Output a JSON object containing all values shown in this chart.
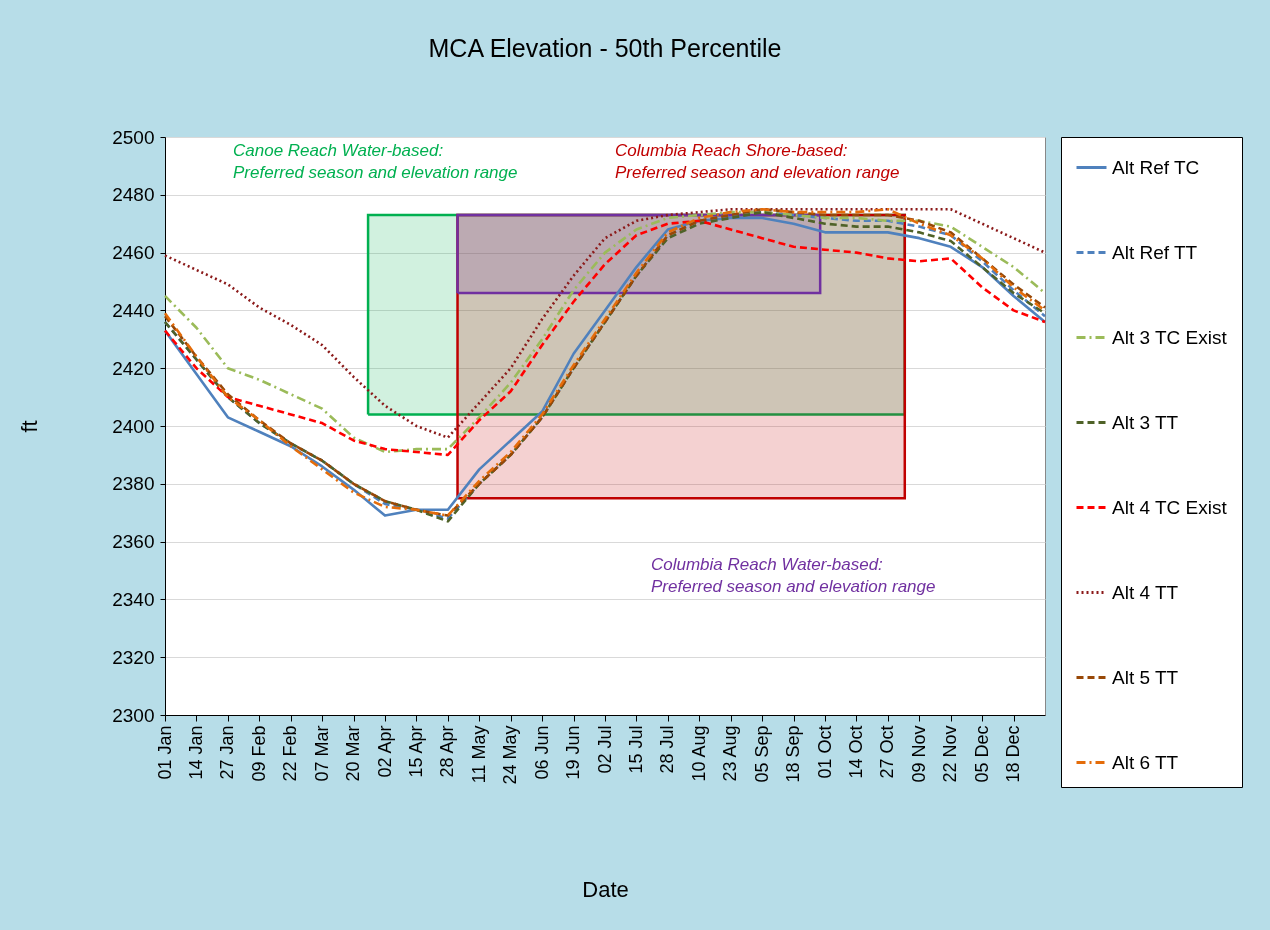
{
  "chart_data": {
    "type": "line",
    "title": "MCA Elevation  - 50th Percentile",
    "xlabel": "Date",
    "ylabel": "ft",
    "x": [
      "--01-01",
      "--01-14",
      "--01-27",
      "--02-09",
      "--02-22",
      "--03-07",
      "--03-20",
      "--04-02",
      "--04-15",
      "--04-28",
      "--05-11",
      "--05-24",
      "--06-06",
      "--06-19",
      "--07-02",
      "--07-15",
      "--07-28",
      "--08-10",
      "--08-23",
      "--09-05",
      "--09-18",
      "--10-01",
      "--10-14",
      "--10-27",
      "--11-09",
      "--11-22",
      "--12-05",
      "--12-18",
      "--12-31"
    ],
    "xlim": [
      "--01-01",
      "--12-31"
    ],
    "xticks": [
      {
        "value": "--01-01",
        "label": "01 Jan"
      },
      {
        "value": "--01-14",
        "label": "14 Jan"
      },
      {
        "value": "--01-27",
        "label": "27 Jan"
      },
      {
        "value": "--02-09",
        "label": "09 Feb"
      },
      {
        "value": "--02-22",
        "label": "22 Feb"
      },
      {
        "value": "--03-07",
        "label": "07 Mar"
      },
      {
        "value": "--03-20",
        "label": "20 Mar"
      },
      {
        "value": "--04-02",
        "label": "02 Apr"
      },
      {
        "value": "--04-15",
        "label": "15 Apr"
      },
      {
        "value": "--04-28",
        "label": "28 Apr"
      },
      {
        "value": "--05-11",
        "label": "11 May"
      },
      {
        "value": "--05-24",
        "label": "24 May"
      },
      {
        "value": "--06-06",
        "label": "06 Jun"
      },
      {
        "value": "--06-19",
        "label": "19 Jun"
      },
      {
        "value": "--07-02",
        "label": "02 Jul"
      },
      {
        "value": "--07-15",
        "label": "15 Jul"
      },
      {
        "value": "--07-28",
        "label": "28 Jul"
      },
      {
        "value": "--08-10",
        "label": "10 Aug"
      },
      {
        "value": "--08-23",
        "label": "23 Aug"
      },
      {
        "value": "--09-05",
        "label": "05 Sep"
      },
      {
        "value": "--09-18",
        "label": "18 Sep"
      },
      {
        "value": "--10-01",
        "label": "01 Oct"
      },
      {
        "value": "--10-14",
        "label": "14 Oct"
      },
      {
        "value": "--10-27",
        "label": "27 Oct"
      },
      {
        "value": "--11-09",
        "label": "09 Nov"
      },
      {
        "value": "--11-22",
        "label": "22 Nov"
      },
      {
        "value": "--12-05",
        "label": "05 Dec"
      },
      {
        "value": "--12-18",
        "label": "18 Dec"
      }
    ],
    "ylim": [
      2300,
      2500
    ],
    "yticks": [
      2300,
      2320,
      2340,
      2360,
      2380,
      2400,
      2420,
      2440,
      2460,
      2480,
      2500
    ],
    "grid": "y",
    "legend": "right",
    "series": [
      {
        "name": "Alt Ref TC",
        "color": "#4f81bd",
        "line_style": "solid",
        "values": [
          2433,
          2418,
          2403,
          2398,
          2393,
          2386,
          2378,
          2369,
          2371,
          2371,
          2385,
          2395,
          2405,
          2425,
          2440,
          2455,
          2468,
          2471,
          2472,
          2472,
          2470,
          2467,
          2467,
          2467,
          2465,
          2462,
          2455,
          2445,
          2436
        ]
      },
      {
        "name": "Alt Ref TT",
        "color": "#4f81bd",
        "line_style": "dashed",
        "values": [
          2436,
          2423,
          2410,
          2401,
          2394,
          2388,
          2380,
          2373,
          2371,
          2368,
          2380,
          2390,
          2403,
          2420,
          2436,
          2452,
          2466,
          2471,
          2473,
          2474,
          2473,
          2472,
          2471,
          2471,
          2469,
          2466,
          2457,
          2447,
          2438
        ]
      },
      {
        "name": "Alt 3 TC Exist",
        "color": "#9bbb59",
        "line_style": "dashdot",
        "values": [
          2445,
          2434,
          2420,
          2416,
          2411,
          2406,
          2396,
          2391,
          2392,
          2392,
          2403,
          2415,
          2430,
          2447,
          2460,
          2468,
          2472,
          2473,
          2474,
          2474,
          2473,
          2472,
          2472,
          2471,
          2471,
          2469,
          2462,
          2455,
          2446
        ]
      },
      {
        "name": "Alt 3 TT",
        "color": "#4f6228",
        "line_style": "dashed",
        "values": [
          2436,
          2423,
          2410,
          2401,
          2394,
          2388,
          2380,
          2374,
          2371,
          2367,
          2380,
          2390,
          2403,
          2420,
          2436,
          2452,
          2465,
          2470,
          2472,
          2474,
          2472,
          2470,
          2469,
          2469,
          2467,
          2464,
          2455,
          2446,
          2439
        ]
      },
      {
        "name": "Alt 4 TC Exist",
        "color": "#ff0000",
        "line_style": "dashed",
        "values": [
          2433,
          2420,
          2410,
          2407,
          2404,
          2401,
          2395,
          2392,
          2391,
          2390,
          2402,
          2412,
          2428,
          2443,
          2456,
          2466,
          2470,
          2471,
          2468,
          2465,
          2462,
          2461,
          2460,
          2458,
          2457,
          2458,
          2448,
          2440,
          2436
        ]
      },
      {
        "name": "Alt 4 TT",
        "color": "#8b1a1a",
        "line_style": "dotted",
        "values": [
          2459,
          2454,
          2449,
          2441,
          2435,
          2428,
          2417,
          2407,
          2400,
          2396,
          2408,
          2420,
          2437,
          2452,
          2465,
          2471,
          2473,
          2474,
          2475,
          2475,
          2475,
          2475,
          2475,
          2475,
          2475,
          2475,
          2470,
          2465,
          2460
        ]
      },
      {
        "name": "Alt 5 TT",
        "color": "#984807",
        "line_style": "dashed",
        "values": [
          2438,
          2424,
          2411,
          2402,
          2394,
          2388,
          2380,
          2374,
          2371,
          2369,
          2380,
          2390,
          2403,
          2420,
          2436,
          2452,
          2466,
          2471,
          2473,
          2475,
          2474,
          2473,
          2473,
          2473,
          2471,
          2467,
          2458,
          2449,
          2441
        ]
      },
      {
        "name": "Alt 6 TT",
        "color": "#e46c0a",
        "line_style": "dashdot",
        "values": [
          2439,
          2424,
          2410,
          2402,
          2393,
          2385,
          2377,
          2372,
          2371,
          2369,
          2381,
          2391,
          2404,
          2421,
          2437,
          2453,
          2467,
          2472,
          2474,
          2475,
          2474,
          2474,
          2474,
          2475,
          2470,
          2466,
          2458,
          2448,
          2440
        ]
      },
      {
        "type": "area",
        "color": "#00b050",
        "line_style": "solid",
        "x": [
          "--03-26",
          "--03-26",
          "--11-03",
          "--11-03",
          "--03-26"
        ],
        "values": [
          2404,
          2473,
          2473,
          2404,
          2404
        ]
      },
      {
        "type": "area",
        "color": "#c00000",
        "line_style": "solid",
        "x": [
          "--05-02",
          "--05-02",
          "--11-03",
          "--11-03",
          "--05-02"
        ],
        "values": [
          2375,
          2473,
          2473,
          2375,
          2375
        ]
      },
      {
        "type": "area",
        "color": "#7030a0",
        "line_style": "solid",
        "x": [
          "--05-02",
          "--05-02",
          "--09-29",
          "--09-29",
          "--05-02"
        ],
        "values": [
          2446,
          2473,
          2473,
          2446,
          2446
        ]
      }
    ],
    "annotations": [
      "Canoe Reach Water-based:\nPreferred season and elevation range",
      "Columbia Reach Shore-based:\nPreferred season and elevation range",
      "Columbia Reach Water-based:\nPreferred season and elevation range"
    ]
  }
}
